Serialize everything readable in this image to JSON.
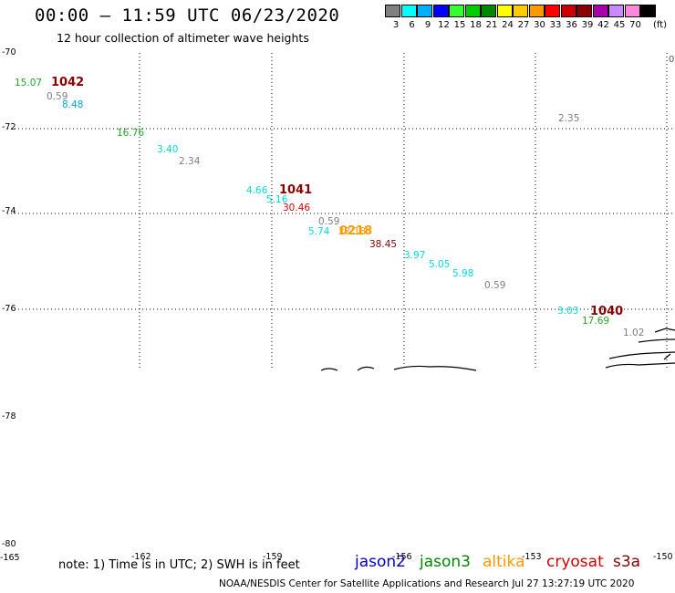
{
  "header": {
    "title": "00:00 – 11:59 UTC 06/23/2020",
    "subtitle": "12 hour collection of altimeter wave heights"
  },
  "legend": {
    "unit": "(ft)",
    "items": [
      {
        "label": "3",
        "color": "#808080"
      },
      {
        "label": "6",
        "color": "#00ffff"
      },
      {
        "label": "9",
        "color": "#00b0ff"
      },
      {
        "label": "12",
        "color": "#0000ff"
      },
      {
        "label": "15",
        "color": "#33ff33"
      },
      {
        "label": "18",
        "color": "#00cc00"
      },
      {
        "label": "21",
        "color": "#008800"
      },
      {
        "label": "24",
        "color": "#ffff00"
      },
      {
        "label": "27",
        "color": "#ffcc00"
      },
      {
        "label": "30",
        "color": "#ff9900"
      },
      {
        "label": "33",
        "color": "#ff0000"
      },
      {
        "label": "36",
        "color": "#cc0000"
      },
      {
        "label": "39",
        "color": "#880000"
      },
      {
        "label": "42",
        "color": "#aa00aa"
      },
      {
        "label": "45",
        "color": "#cc88ff"
      },
      {
        "label": "70",
        "color": "#ff88dd"
      },
      {
        "label": "",
        "color": "#000000"
      }
    ]
  },
  "axes": {
    "lat_labels": [
      "-70",
      "-72",
      "-74",
      "-76",
      "-78",
      "-80"
    ],
    "lon_labels": [
      "-165",
      "-162",
      "-159",
      "-156",
      "-153",
      "-150"
    ],
    "right_edge_label": "0"
  },
  "observations": [
    {
      "text": "15.07",
      "color": "#22aa22"
    },
    {
      "text": "0.59",
      "color": "#808080"
    },
    {
      "text": "8.48",
      "color": "#00aadd"
    },
    {
      "text": "16.76",
      "color": "#22aa22"
    },
    {
      "text": "3.40",
      "color": "#00dddd"
    },
    {
      "text": "2.34",
      "color": "#808080"
    },
    {
      "text": "4.66",
      "color": "#00dddd"
    },
    {
      "text": "5.16",
      "color": "#00dddd"
    },
    {
      "text": "30.46",
      "color": "#dd0000"
    },
    {
      "text": "0.59",
      "color": "#808080"
    },
    {
      "text": "5.74",
      "color": "#00dddd"
    },
    {
      "text": "27.18",
      "color": "#ff9900"
    },
    {
      "text": "38.45",
      "color": "#880000"
    },
    {
      "text": "3.97",
      "color": "#00dddd"
    },
    {
      "text": "5.05",
      "color": "#00dddd"
    },
    {
      "text": "5.98",
      "color": "#00dddd"
    },
    {
      "text": "0.59",
      "color": "#808080"
    },
    {
      "text": "2.35",
      "color": "#808080"
    },
    {
      "text": "3.03",
      "color": "#00dddd"
    },
    {
      "text": "17.69",
      "color": "#22aa22"
    },
    {
      "text": "1.02",
      "color": "#808080"
    }
  ],
  "revolutions": [
    {
      "text": "1042",
      "color": "#880000"
    },
    {
      "text": "1041",
      "color": "#880000"
    },
    {
      "text": "1040",
      "color": "#880000"
    },
    {
      "text": "0218",
      "color": "#ff9900"
    }
  ],
  "footer": {
    "note": "note: 1) Time is in UTC; 2) SWH is in feet",
    "satellites": [
      {
        "name": "jason2",
        "color": "#0000cc"
      },
      {
        "name": "jason3",
        "color": "#008800"
      },
      {
        "name": "altika",
        "color": "#ff9900"
      },
      {
        "name": "cryosat",
        "color": "#cc0000"
      },
      {
        "name": "s3a",
        "color": "#880000"
      }
    ],
    "credit": "NOAA/NESDIS Center for Satellite Applications and Research   Jul 27 13:27:19 UTC 2020"
  }
}
